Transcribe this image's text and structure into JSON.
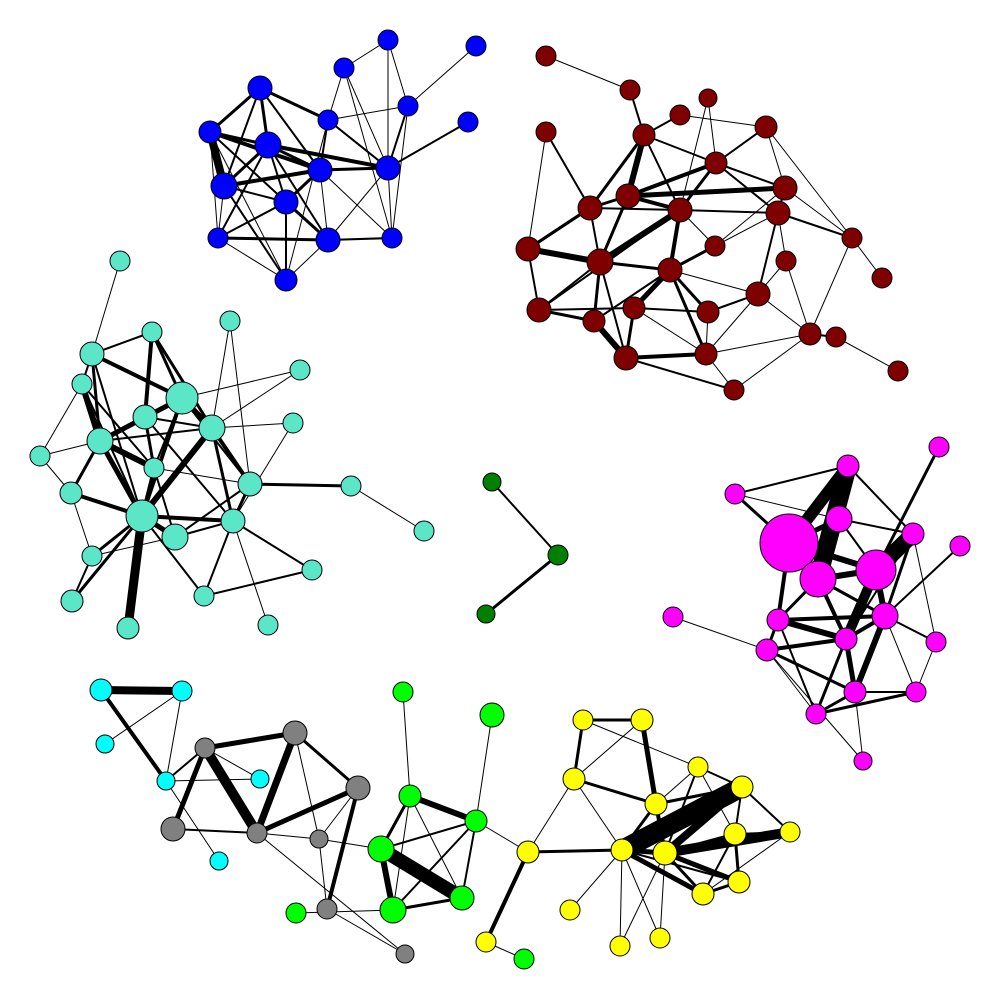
{
  "graph": {
    "type": "network",
    "node_stroke": "#000000",
    "edge_color": "#000000",
    "communities": [
      {
        "id": "blue",
        "color": "#0000ff"
      },
      {
        "id": "maroon",
        "color": "#7f0000"
      },
      {
        "id": "turquoise",
        "color": "#5ce6c8"
      },
      {
        "id": "magenta",
        "color": "#ff00ff"
      },
      {
        "id": "darkgreen",
        "color": "#007f00"
      },
      {
        "id": "cyan",
        "color": "#00ffff"
      },
      {
        "id": "gray",
        "color": "#808080"
      },
      {
        "id": "green",
        "color": "#00ff00"
      },
      {
        "id": "yellow",
        "color": "#ffff00"
      }
    ]
  }
}
